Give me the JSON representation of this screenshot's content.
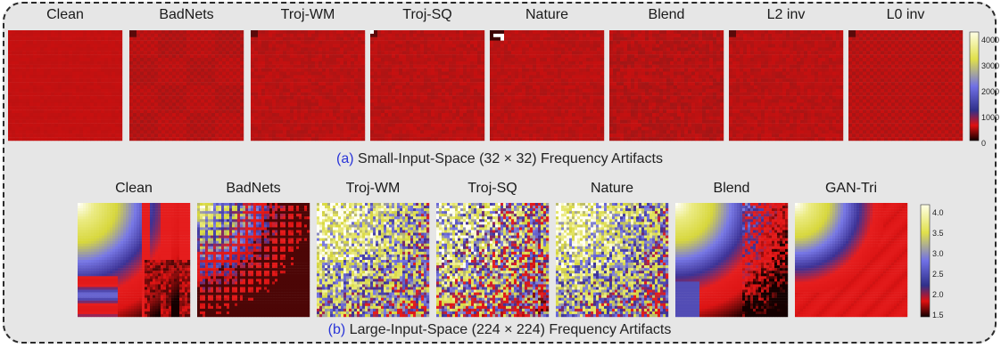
{
  "panel_a": {
    "tag": "(a)",
    "caption": "Small-Input-Space (32 × 32) Frequency Artifacts",
    "tiles": [
      {
        "label": "Clean",
        "pattern": "clean"
      },
      {
        "label": "BadNets",
        "pattern": "badnets"
      },
      {
        "label": "Troj-WM",
        "pattern": "noisy"
      },
      {
        "label": "Troj-SQ",
        "pattern": "noisy-corner"
      },
      {
        "label": "Nature",
        "pattern": "nature"
      },
      {
        "label": "Blend",
        "pattern": "blend"
      },
      {
        "label": "L2 inv",
        "pattern": "noisy"
      },
      {
        "label": "L0 inv",
        "pattern": "checker"
      }
    ],
    "colorbar": {
      "ticks": [
        "4000",
        "3000",
        "2000",
        "1000",
        "0"
      ]
    }
  },
  "panel_b": {
    "tag": "(b)",
    "caption": "Large-Input-Space (224 × 224) Frequency Artifacts",
    "tiles": [
      {
        "label": "Clean",
        "pattern": "clean-large"
      },
      {
        "label": "BadNets",
        "pattern": "badnets-large"
      },
      {
        "label": "Troj-WM",
        "pattern": "speckle"
      },
      {
        "label": "Troj-SQ",
        "pattern": "speckle-dense"
      },
      {
        "label": "Nature",
        "pattern": "speckle"
      },
      {
        "label": "Blend",
        "pattern": "blend-large"
      },
      {
        "label": "GAN-Tri",
        "pattern": "gan"
      }
    ],
    "colorbar": {
      "ticks": [
        "4.0",
        "3.5",
        "3.0",
        "2.5",
        "2.0",
        "1.5"
      ]
    }
  },
  "colors": {
    "red": "#c8100f",
    "yellow": "#e6e64a",
    "blue": "#6b6be0",
    "black": "#2a0000"
  }
}
